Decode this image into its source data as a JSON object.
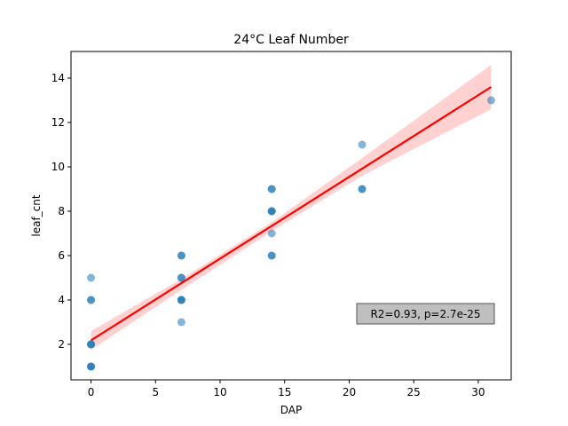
{
  "chart_data": {
    "type": "scatter",
    "title": "24°C Leaf Number",
    "xlabel": "DAP",
    "ylabel": "leaf_cnt",
    "xlim": [
      -1.55,
      32.55
    ],
    "ylim": [
      0.4,
      15.2
    ],
    "xticks": [
      0,
      5,
      10,
      15,
      20,
      25,
      30
    ],
    "yticks": [
      2,
      4,
      6,
      8,
      10,
      12,
      14
    ],
    "grid": false,
    "point_color": "#1f77b4",
    "fit_color": "#ff0000",
    "ci_color": "#ffb3b3",
    "points": [
      {
        "x": 0,
        "y": 1
      },
      {
        "x": 0,
        "y": 1
      },
      {
        "x": 0,
        "y": 1
      },
      {
        "x": 0,
        "y": 2
      },
      {
        "x": 0,
        "y": 2
      },
      {
        "x": 0,
        "y": 2
      },
      {
        "x": 0,
        "y": 4
      },
      {
        "x": 0,
        "y": 4
      },
      {
        "x": 0,
        "y": 5
      },
      {
        "x": 7,
        "y": 3
      },
      {
        "x": 7,
        "y": 4
      },
      {
        "x": 7,
        "y": 4
      },
      {
        "x": 7,
        "y": 4
      },
      {
        "x": 7,
        "y": 5
      },
      {
        "x": 7,
        "y": 5
      },
      {
        "x": 7,
        "y": 6
      },
      {
        "x": 7,
        "y": 6
      },
      {
        "x": 14,
        "y": 6
      },
      {
        "x": 14,
        "y": 6
      },
      {
        "x": 14,
        "y": 7
      },
      {
        "x": 14,
        "y": 8
      },
      {
        "x": 14,
        "y": 8
      },
      {
        "x": 14,
        "y": 8
      },
      {
        "x": 14,
        "y": 9
      },
      {
        "x": 14,
        "y": 9
      },
      {
        "x": 21,
        "y": 9
      },
      {
        "x": 21,
        "y": 9
      },
      {
        "x": 21,
        "y": 11
      },
      {
        "x": 31,
        "y": 13
      }
    ],
    "fit": {
      "x": [
        0,
        31
      ],
      "y": [
        2.18,
        13.6
      ]
    },
    "ci_band": {
      "x": [
        0,
        7,
        14,
        21,
        31
      ],
      "lower": [
        1.75,
        4.45,
        7.1,
        9.6,
        12.6
      ],
      "upper": [
        2.6,
        4.95,
        7.5,
        10.4,
        14.6
      ]
    },
    "annotation": "R2=0.93, p=2.7e-25"
  }
}
